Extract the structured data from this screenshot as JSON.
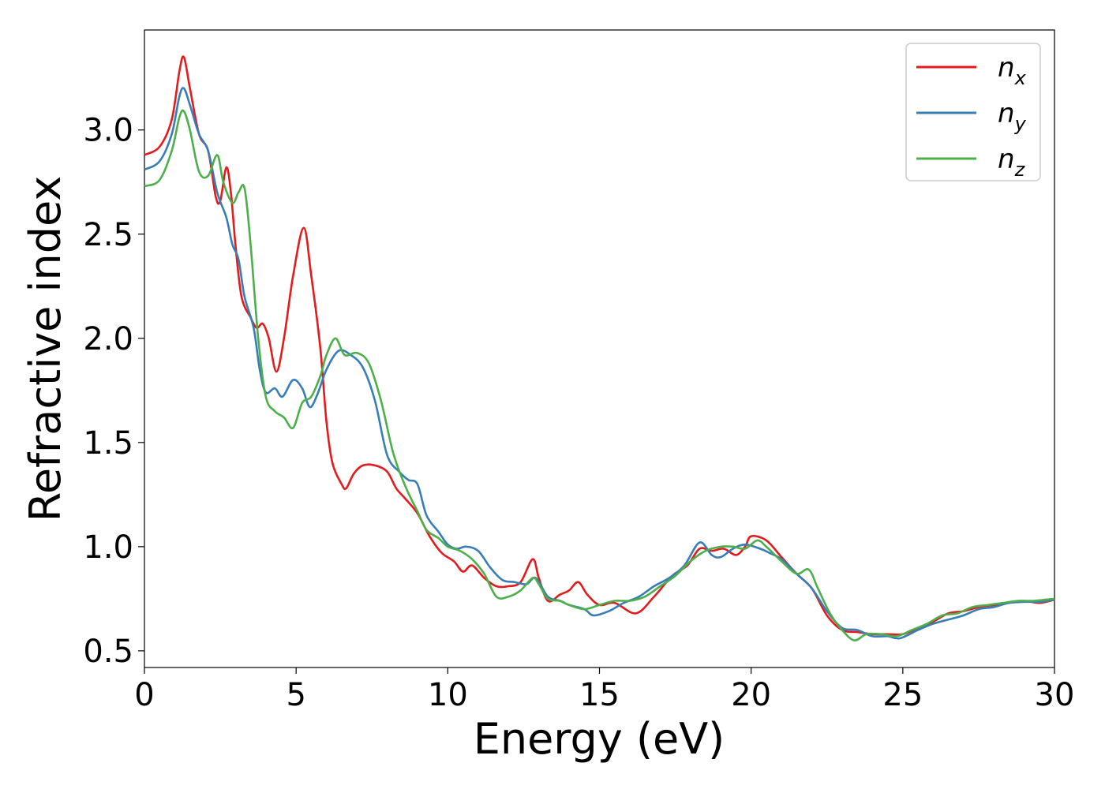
{
  "chart_data": {
    "type": "line",
    "xlabel": "Energy (eV)",
    "ylabel": "Refractive index",
    "xlim": [
      0,
      30
    ],
    "ylim": [
      0.42,
      3.48
    ],
    "xticks": [
      "0",
      "5",
      "10",
      "15",
      "20",
      "25",
      "30"
    ],
    "yticks": [
      "0.5",
      "1.0",
      "1.5",
      "2.0",
      "2.5",
      "3.0"
    ],
    "grid": false,
    "legend_position": "top-right",
    "series": [
      {
        "name": "n",
        "subscript": "x",
        "color": "#e41a1c",
        "points": [
          [
            0,
            2.88
          ],
          [
            0.5,
            2.92
          ],
          [
            0.9,
            3.05
          ],
          [
            1.15,
            3.28
          ],
          [
            1.3,
            3.35
          ],
          [
            1.5,
            3.2
          ],
          [
            1.8,
            2.98
          ],
          [
            2.1,
            2.9
          ],
          [
            2.35,
            2.68
          ],
          [
            2.5,
            2.66
          ],
          [
            2.7,
            2.82
          ],
          [
            2.85,
            2.7
          ],
          [
            3.0,
            2.45
          ],
          [
            3.2,
            2.2
          ],
          [
            3.5,
            2.1
          ],
          [
            3.7,
            2.05
          ],
          [
            3.9,
            2.07
          ],
          [
            4.1,
            2.0
          ],
          [
            4.35,
            1.84
          ],
          [
            4.6,
            2.0
          ],
          [
            4.9,
            2.3
          ],
          [
            5.25,
            2.53
          ],
          [
            5.5,
            2.3
          ],
          [
            5.8,
            1.95
          ],
          [
            6.0,
            1.6
          ],
          [
            6.2,
            1.4
          ],
          [
            6.5,
            1.3
          ],
          [
            6.65,
            1.28
          ],
          [
            6.9,
            1.35
          ],
          [
            7.2,
            1.39
          ],
          [
            7.6,
            1.39
          ],
          [
            8.0,
            1.36
          ],
          [
            8.3,
            1.28
          ],
          [
            8.6,
            1.23
          ],
          [
            9.0,
            1.16
          ],
          [
            9.4,
            1.05
          ],
          [
            9.8,
            0.97
          ],
          [
            10.2,
            0.93
          ],
          [
            10.5,
            0.88
          ],
          [
            10.8,
            0.91
          ],
          [
            11.2,
            0.85
          ],
          [
            11.6,
            0.81
          ],
          [
            12.0,
            0.81
          ],
          [
            12.4,
            0.83
          ],
          [
            12.8,
            0.94
          ],
          [
            13.0,
            0.85
          ],
          [
            13.3,
            0.74
          ],
          [
            13.7,
            0.77
          ],
          [
            14.0,
            0.79
          ],
          [
            14.3,
            0.83
          ],
          [
            14.6,
            0.77
          ],
          [
            15.0,
            0.72
          ],
          [
            15.5,
            0.73
          ],
          [
            16.2,
            0.68
          ],
          [
            16.8,
            0.76
          ],
          [
            17.4,
            0.86
          ],
          [
            17.9,
            0.91
          ],
          [
            18.3,
            0.99
          ],
          [
            18.7,
            0.98
          ],
          [
            19.1,
            0.99
          ],
          [
            19.5,
            0.96
          ],
          [
            19.8,
            1.0
          ],
          [
            20.0,
            1.05
          ],
          [
            20.5,
            1.03
          ],
          [
            21.0,
            0.95
          ],
          [
            21.5,
            0.87
          ],
          [
            22.0,
            0.8
          ],
          [
            22.5,
            0.67
          ],
          [
            23.0,
            0.6
          ],
          [
            23.5,
            0.59
          ],
          [
            24.0,
            0.58
          ],
          [
            24.5,
            0.58
          ],
          [
            25.0,
            0.58
          ],
          [
            25.5,
            0.61
          ],
          [
            26.0,
            0.64
          ],
          [
            26.5,
            0.68
          ],
          [
            27.0,
            0.69
          ],
          [
            27.5,
            0.71
          ],
          [
            28.0,
            0.72
          ],
          [
            28.5,
            0.73
          ],
          [
            29.0,
            0.74
          ],
          [
            29.5,
            0.73
          ],
          [
            30.0,
            0.745
          ]
        ]
      },
      {
        "name": "n",
        "subscript": "y",
        "color": "#377eb8",
        "points": [
          [
            0,
            2.81
          ],
          [
            0.5,
            2.85
          ],
          [
            0.9,
            2.98
          ],
          [
            1.15,
            3.16
          ],
          [
            1.3,
            3.2
          ],
          [
            1.5,
            3.12
          ],
          [
            1.8,
            2.98
          ],
          [
            2.1,
            2.9
          ],
          [
            2.4,
            2.7
          ],
          [
            2.7,
            2.58
          ],
          [
            2.9,
            2.45
          ],
          [
            3.1,
            2.38
          ],
          [
            3.3,
            2.2
          ],
          [
            3.6,
            2.05
          ],
          [
            3.8,
            1.85
          ],
          [
            4.0,
            1.74
          ],
          [
            4.3,
            1.76
          ],
          [
            4.55,
            1.72
          ],
          [
            4.9,
            1.8
          ],
          [
            5.2,
            1.76
          ],
          [
            5.45,
            1.67
          ],
          [
            5.7,
            1.73
          ],
          [
            6.0,
            1.85
          ],
          [
            6.4,
            1.94
          ],
          [
            6.8,
            1.92
          ],
          [
            7.2,
            1.86
          ],
          [
            7.6,
            1.7
          ],
          [
            8.0,
            1.44
          ],
          [
            8.4,
            1.36
          ],
          [
            8.7,
            1.32
          ],
          [
            9.0,
            1.3
          ],
          [
            9.3,
            1.15
          ],
          [
            9.7,
            1.07
          ],
          [
            10.0,
            1.01
          ],
          [
            10.3,
            0.99
          ],
          [
            10.6,
            1.0
          ],
          [
            11.0,
            0.98
          ],
          [
            11.4,
            0.9
          ],
          [
            11.8,
            0.84
          ],
          [
            12.2,
            0.83
          ],
          [
            12.6,
            0.82
          ],
          [
            12.9,
            0.85
          ],
          [
            13.3,
            0.76
          ],
          [
            13.7,
            0.74
          ],
          [
            14.0,
            0.72
          ],
          [
            14.5,
            0.7
          ],
          [
            14.8,
            0.67
          ],
          [
            15.3,
            0.69
          ],
          [
            15.8,
            0.73
          ],
          [
            16.3,
            0.76
          ],
          [
            16.8,
            0.81
          ],
          [
            17.3,
            0.85
          ],
          [
            17.8,
            0.91
          ],
          [
            18.3,
            1.02
          ],
          [
            18.7,
            0.96
          ],
          [
            19.0,
            0.95
          ],
          [
            19.4,
            0.99
          ],
          [
            19.8,
            1.01
          ],
          [
            20.3,
            0.99
          ],
          [
            20.6,
            0.97
          ],
          [
            21.0,
            0.94
          ],
          [
            21.5,
            0.87
          ],
          [
            22.0,
            0.8
          ],
          [
            22.5,
            0.69
          ],
          [
            23.0,
            0.61
          ],
          [
            23.5,
            0.6
          ],
          [
            24.0,
            0.57
          ],
          [
            24.5,
            0.57
          ],
          [
            24.9,
            0.56
          ],
          [
            25.5,
            0.6
          ],
          [
            26.0,
            0.63
          ],
          [
            26.5,
            0.65
          ],
          [
            27.0,
            0.67
          ],
          [
            27.5,
            0.7
          ],
          [
            28.0,
            0.71
          ],
          [
            28.5,
            0.73
          ],
          [
            29.0,
            0.735
          ],
          [
            29.5,
            0.735
          ],
          [
            30.0,
            0.745
          ]
        ]
      },
      {
        "name": "n",
        "subscript": "z",
        "color": "#4daf4a",
        "points": [
          [
            0,
            2.73
          ],
          [
            0.5,
            2.76
          ],
          [
            0.9,
            2.9
          ],
          [
            1.15,
            3.06
          ],
          [
            1.3,
            3.09
          ],
          [
            1.5,
            3.0
          ],
          [
            1.8,
            2.8
          ],
          [
            2.1,
            2.78
          ],
          [
            2.4,
            2.88
          ],
          [
            2.6,
            2.75
          ],
          [
            2.9,
            2.65
          ],
          [
            3.1,
            2.7
          ],
          [
            3.3,
            2.72
          ],
          [
            3.5,
            2.45
          ],
          [
            3.75,
            2.0
          ],
          [
            4.0,
            1.72
          ],
          [
            4.3,
            1.65
          ],
          [
            4.6,
            1.62
          ],
          [
            4.9,
            1.57
          ],
          [
            5.2,
            1.69
          ],
          [
            5.5,
            1.72
          ],
          [
            5.8,
            1.82
          ],
          [
            6.0,
            1.92
          ],
          [
            6.3,
            2.0
          ],
          [
            6.6,
            1.92
          ],
          [
            7.0,
            1.93
          ],
          [
            7.4,
            1.88
          ],
          [
            7.8,
            1.7
          ],
          [
            8.2,
            1.45
          ],
          [
            8.6,
            1.29
          ],
          [
            9.0,
            1.17
          ],
          [
            9.3,
            1.08
          ],
          [
            9.7,
            1.04
          ],
          [
            10.0,
            1.0
          ],
          [
            10.4,
            0.98
          ],
          [
            10.8,
            0.94
          ],
          [
            11.2,
            0.87
          ],
          [
            11.6,
            0.76
          ],
          [
            12.0,
            0.76
          ],
          [
            12.4,
            0.79
          ],
          [
            12.8,
            0.85
          ],
          [
            13.0,
            0.82
          ],
          [
            13.3,
            0.75
          ],
          [
            13.7,
            0.74
          ],
          [
            14.0,
            0.72
          ],
          [
            14.5,
            0.7
          ],
          [
            15.0,
            0.72
          ],
          [
            15.5,
            0.74
          ],
          [
            16.0,
            0.74
          ],
          [
            16.5,
            0.76
          ],
          [
            17.0,
            0.81
          ],
          [
            17.5,
            0.86
          ],
          [
            18.0,
            0.93
          ],
          [
            18.5,
            0.98
          ],
          [
            19.0,
            1.0
          ],
          [
            19.4,
            1.0
          ],
          [
            19.8,
            0.99
          ],
          [
            20.2,
            1.03
          ],
          [
            20.5,
            1.0
          ],
          [
            21.0,
            0.93
          ],
          [
            21.5,
            0.87
          ],
          [
            21.9,
            0.89
          ],
          [
            22.2,
            0.8
          ],
          [
            22.6,
            0.68
          ],
          [
            23.0,
            0.6
          ],
          [
            23.4,
            0.55
          ],
          [
            23.8,
            0.58
          ],
          [
            24.3,
            0.58
          ],
          [
            24.8,
            0.57
          ],
          [
            25.3,
            0.6
          ],
          [
            25.8,
            0.63
          ],
          [
            26.3,
            0.67
          ],
          [
            26.8,
            0.68
          ],
          [
            27.3,
            0.71
          ],
          [
            27.8,
            0.72
          ],
          [
            28.3,
            0.73
          ],
          [
            28.8,
            0.74
          ],
          [
            29.3,
            0.74
          ],
          [
            30.0,
            0.75
          ]
        ]
      }
    ]
  }
}
